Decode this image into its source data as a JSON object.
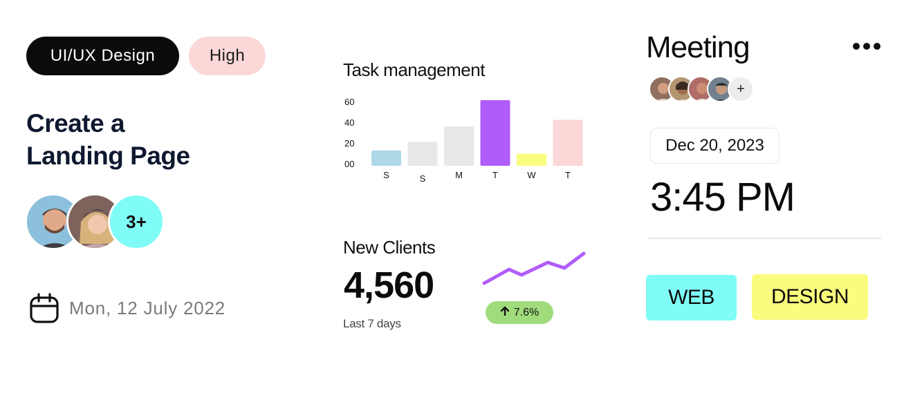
{
  "task_card": {
    "category": "UI/UX Design",
    "priority": "High",
    "title_line1": "Create a",
    "title_line2": "Landing Page",
    "more_assignees": "3+",
    "date": "Mon, 12 July 2022",
    "icons": [
      "calendar-icon"
    ]
  },
  "chart_card": {
    "title": "Task management",
    "colors": [
      "#add8e6",
      "#e8e8e8",
      "#e8e8e8",
      "#b05cfa",
      "#fafc7d",
      "#fcd7d7"
    ]
  },
  "chart_data": {
    "type": "bar",
    "title": "Task management",
    "categories": [
      "S",
      "S",
      "M",
      "T",
      "W",
      "T"
    ],
    "values": [
      14,
      22,
      36,
      60,
      11,
      42
    ],
    "yticks": [
      "60",
      "40",
      "20",
      "00"
    ],
    "ylim": [
      0,
      60
    ],
    "grid": false
  },
  "clients_card": {
    "title": "New Clients",
    "value": "4,560",
    "period": "Last 7 days",
    "change": "7.6%",
    "trend_color": "#b05cfa",
    "icons": [
      "arrow-up-icon"
    ]
  },
  "meeting_card": {
    "title": "Meeting",
    "add_label": "+",
    "date": "Dec 20, 2023",
    "time": "3:45 PM",
    "tags": [
      "WEB",
      "DESIGN"
    ],
    "icons": [
      "more-horizontal-icon"
    ]
  }
}
